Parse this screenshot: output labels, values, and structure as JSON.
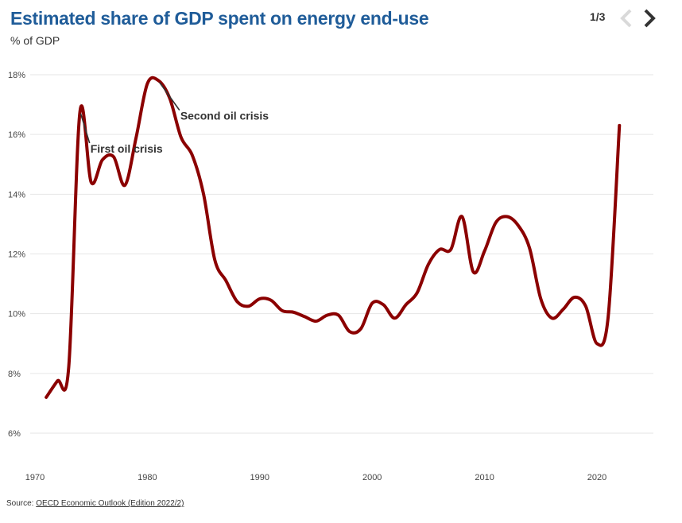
{
  "header": {
    "title": "Estimated share of GDP spent on energy end-use",
    "subtitle": "% of GDP",
    "pager": "1/3"
  },
  "source": {
    "prefix": "Source: ",
    "link_text": "OECD Economic Outlook (Edition 2022/2)"
  },
  "colors": {
    "line": "#8b0000",
    "title": "#1f5c99",
    "grid": "#e6e6e6"
  },
  "chart_data": {
    "type": "line",
    "title": "Estimated share of GDP spent on energy end-use",
    "ylabel": "% of GDP",
    "xlabel": "",
    "xlim": [
      1970,
      2025
    ],
    "ylim": [
      5,
      18.8
    ],
    "y_ticks": [
      {
        "value": 6,
        "label": "6%"
      },
      {
        "value": 8,
        "label": "8%"
      },
      {
        "value": 10,
        "label": "10%"
      },
      {
        "value": 12,
        "label": "12%"
      },
      {
        "value": 14,
        "label": "14%"
      },
      {
        "value": 16,
        "label": "16%"
      },
      {
        "value": 18,
        "label": "18%"
      }
    ],
    "x_ticks": [
      {
        "value": 1970,
        "label": "1970"
      },
      {
        "value": 1980,
        "label": "1980"
      },
      {
        "value": 1990,
        "label": "1990"
      },
      {
        "value": 2000,
        "label": "2000"
      },
      {
        "value": 2010,
        "label": "2010"
      },
      {
        "value": 2020,
        "label": "2020"
      }
    ],
    "series": [
      {
        "name": "Share of GDP",
        "points": [
          [
            1971,
            7.2
          ],
          [
            1972,
            7.75
          ],
          [
            1973,
            8.2
          ],
          [
            1974,
            16.75
          ],
          [
            1975,
            14.4
          ],
          [
            1976,
            15.15
          ],
          [
            1977,
            15.25
          ],
          [
            1978,
            14.3
          ],
          [
            1979,
            15.9
          ],
          [
            1980,
            17.7
          ],
          [
            1981,
            17.8
          ],
          [
            1982,
            17.2
          ],
          [
            1983,
            15.9
          ],
          [
            1984,
            15.3
          ],
          [
            1985,
            14.0
          ],
          [
            1986,
            11.8
          ],
          [
            1987,
            11.1
          ],
          [
            1988,
            10.4
          ],
          [
            1989,
            10.25
          ],
          [
            1990,
            10.5
          ],
          [
            1991,
            10.45
          ],
          [
            1992,
            10.1
          ],
          [
            1993,
            10.05
          ],
          [
            1994,
            9.9
          ],
          [
            1995,
            9.75
          ],
          [
            1996,
            9.95
          ],
          [
            1997,
            9.95
          ],
          [
            1998,
            9.4
          ],
          [
            1999,
            9.5
          ],
          [
            2000,
            10.35
          ],
          [
            2001,
            10.3
          ],
          [
            2002,
            9.85
          ],
          [
            2003,
            10.3
          ],
          [
            2004,
            10.7
          ],
          [
            2005,
            11.65
          ],
          [
            2006,
            12.15
          ],
          [
            2007,
            12.15
          ],
          [
            2008,
            13.25
          ],
          [
            2009,
            11.4
          ],
          [
            2010,
            12.1
          ],
          [
            2011,
            13.05
          ],
          [
            2012,
            13.25
          ],
          [
            2013,
            12.95
          ],
          [
            2014,
            12.2
          ],
          [
            2015,
            10.5
          ],
          [
            2016,
            9.85
          ],
          [
            2017,
            10.15
          ],
          [
            2018,
            10.55
          ],
          [
            2019,
            10.25
          ],
          [
            2020,
            9.0
          ],
          [
            2021,
            9.9
          ],
          [
            2022,
            16.3
          ]
        ]
      }
    ],
    "annotations": [
      {
        "text": "First oil crisis",
        "x": 1974,
        "y": 16.75,
        "label_x": 1975,
        "label_y": 15.5
      },
      {
        "text": "Second oil crisis",
        "x": 1981,
        "y": 17.8,
        "label_x": 1983,
        "label_y": 16.6
      }
    ]
  }
}
